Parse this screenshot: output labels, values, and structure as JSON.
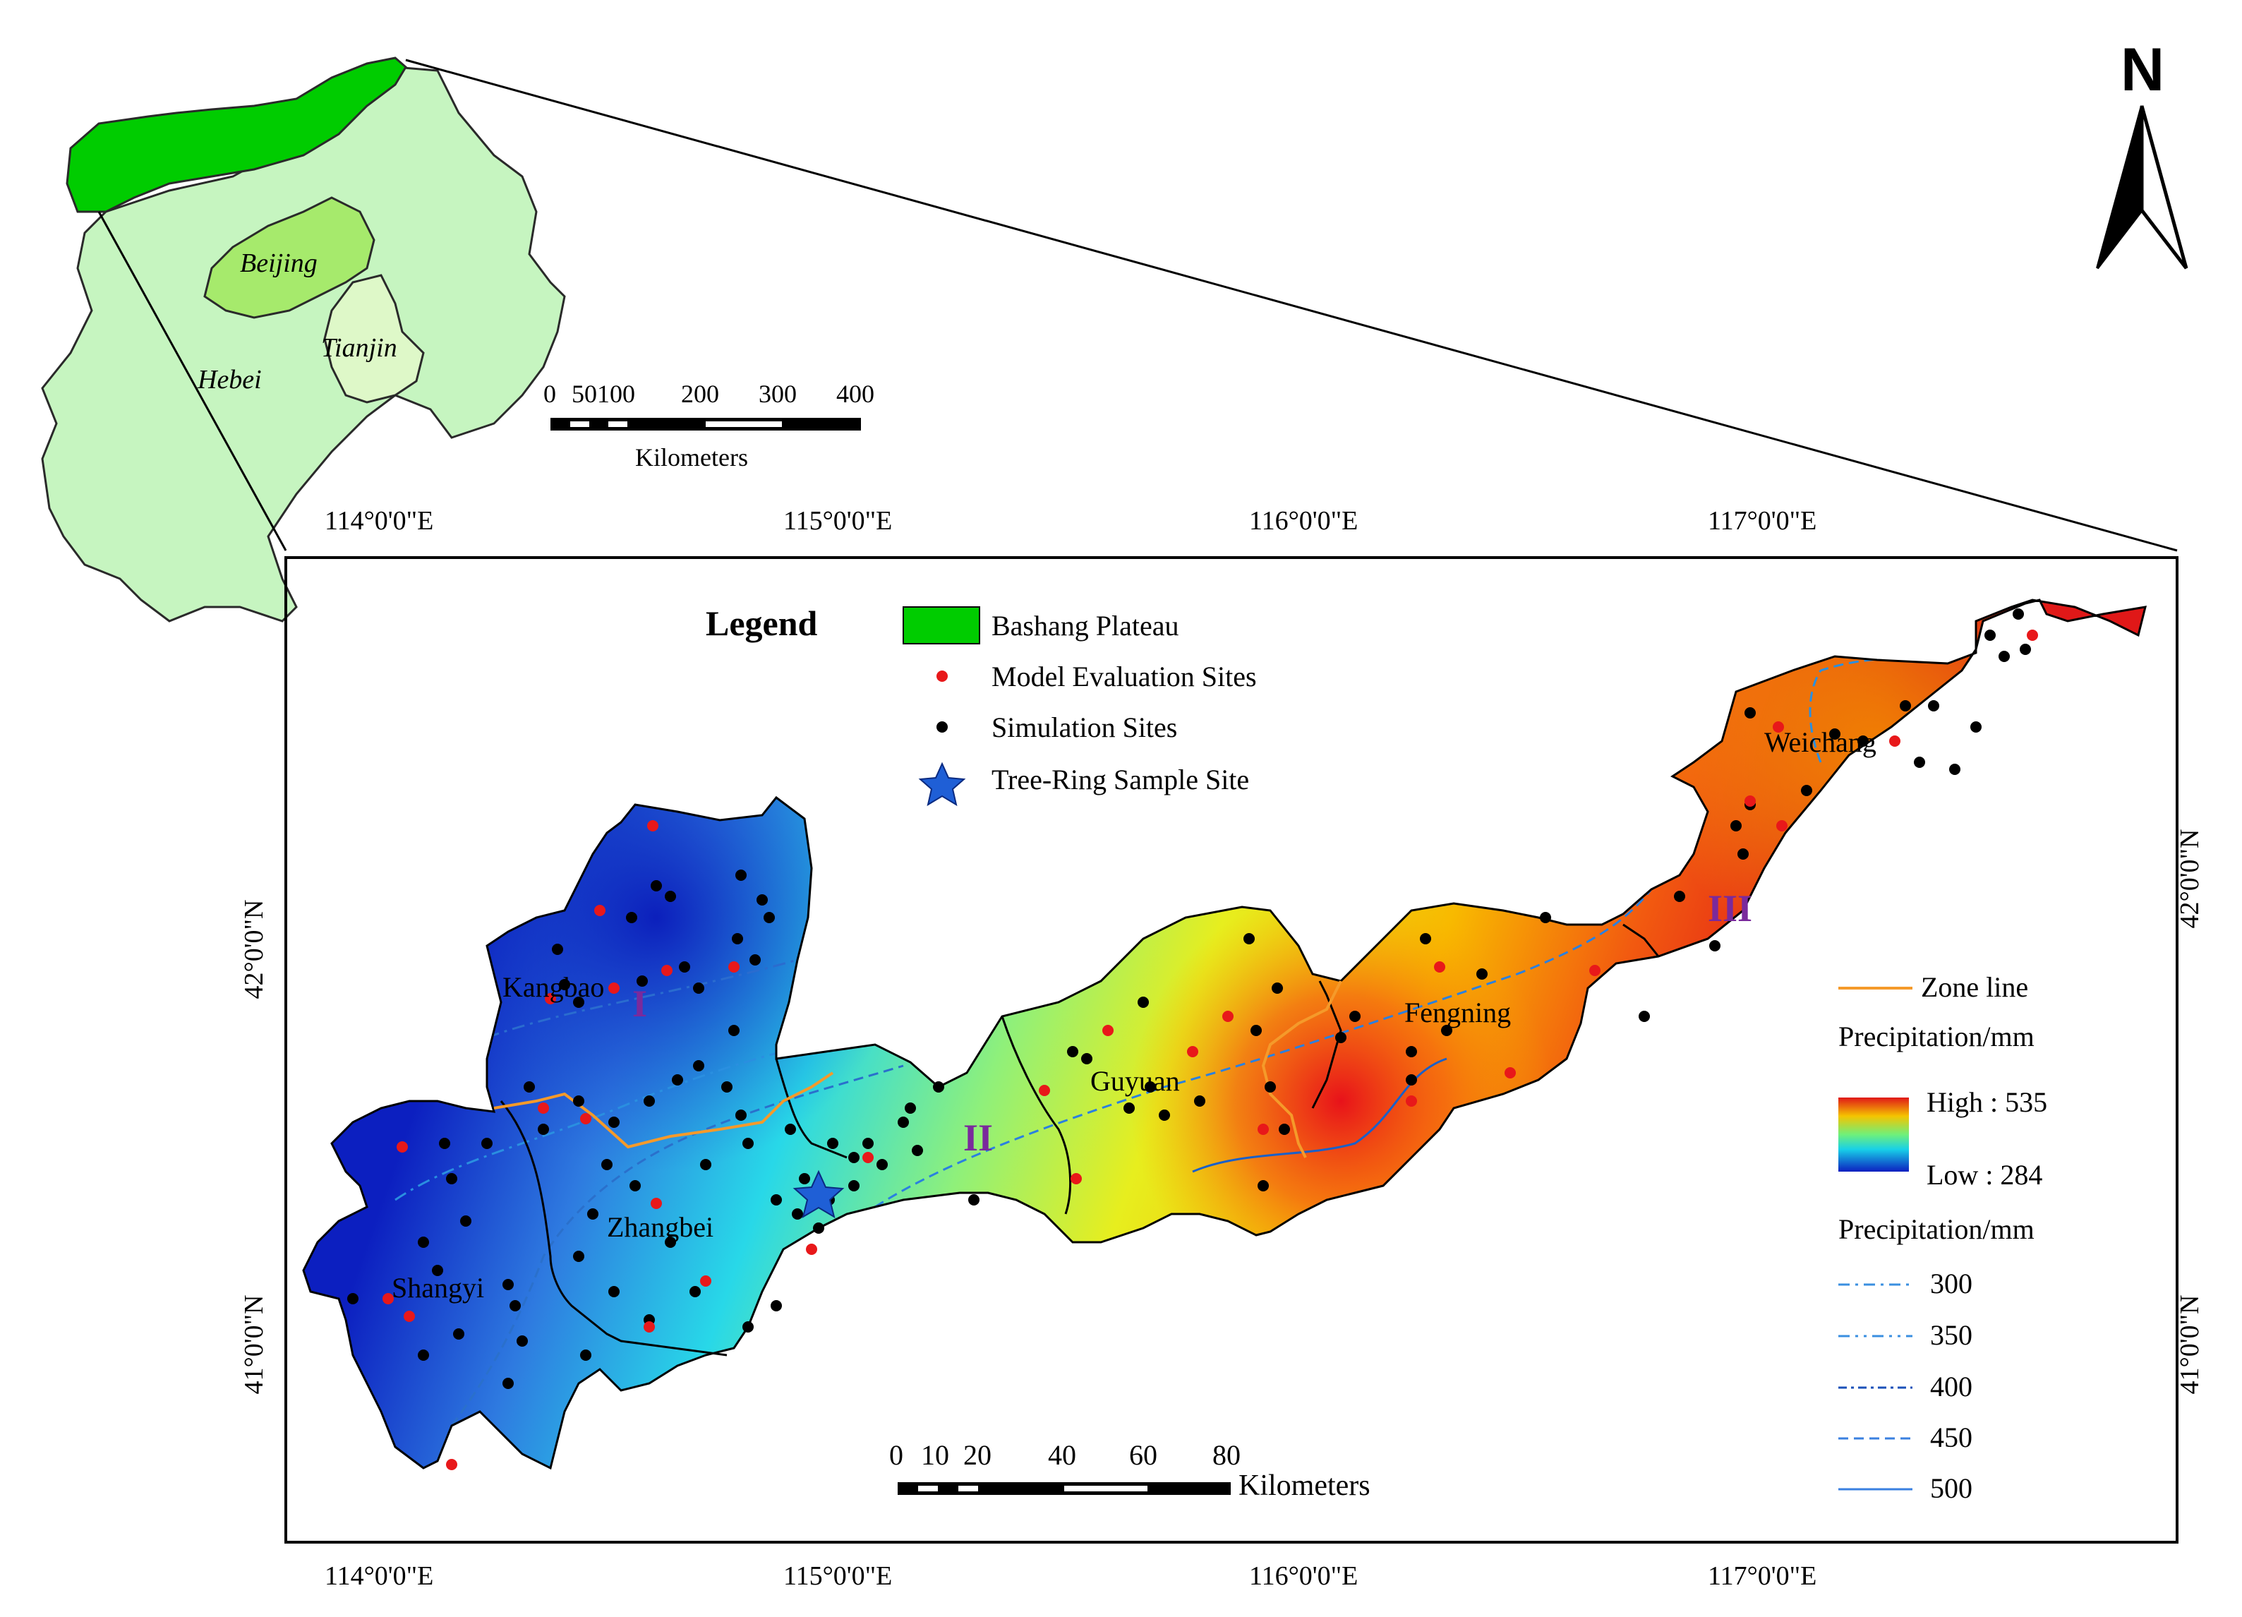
{
  "inset": {
    "labels": {
      "beijing": "Beijing",
      "tianjin": "Tianjin",
      "hebei": "Hebei"
    },
    "scale": {
      "ticks": [
        "0",
        "50100",
        "200",
        "300",
        "400"
      ],
      "unit": "Kilometers"
    },
    "colors": {
      "bashang": "#00cc00",
      "hebei": "#c6f5c0",
      "beijing": "#a6ea6c",
      "tianjin": "#def8c8"
    }
  },
  "north_arrow": {
    "label": "N"
  },
  "axes": {
    "lon_labels": [
      "114°0'0\"E",
      "115°0'0\"E",
      "116°0'0\"E",
      "117°0'0\"E"
    ],
    "lat_labels": [
      "42°0'0\"N",
      "41°0'0\"N"
    ]
  },
  "legend": {
    "title": "Legend",
    "items": [
      {
        "label": "Bashang Plateau",
        "symbol": "green-rect",
        "color": "#00cc00"
      },
      {
        "label": "Model Evaluation Sites",
        "symbol": "red-dot",
        "color": "#e8181a"
      },
      {
        "label": "Simulation Sites",
        "symbol": "black-dot",
        "color": "#000000"
      },
      {
        "label": "Tree-Ring Sample Site",
        "symbol": "blue-star",
        "color": "#1f5fd6"
      }
    ]
  },
  "right_legend": {
    "zone_line": "Zone line",
    "precip_title": "Precipitation/mm",
    "high": "High : 535",
    "low": "Low : 284",
    "contour_title": "Precipitation/mm",
    "contours": [
      "300",
      "350",
      "400",
      "450",
      "500"
    ]
  },
  "places": {
    "kangbao": "Kangbao",
    "shangyi": "Shangyi",
    "zhangbei": "Zhangbei",
    "guyuan": "Guyuan",
    "fengning": "Fengning",
    "weichang": "Weichang"
  },
  "zones": {
    "z1": "I",
    "z2": "II",
    "z3": "III"
  },
  "main_scale": {
    "ticks": [
      "0",
      "10",
      "20",
      "40",
      "60",
      "80"
    ],
    "unit": "Kilometers"
  }
}
